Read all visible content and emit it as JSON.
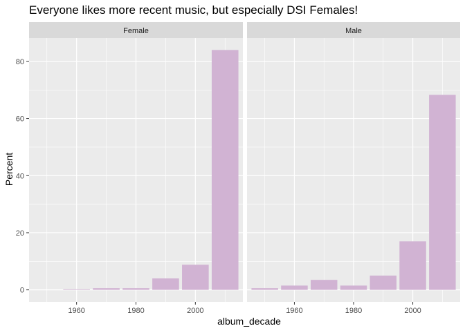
{
  "chart_data": {
    "type": "bar",
    "title": "Everyone likes more recent music, but especially DSI Females!",
    "xlabel": "album_decade",
    "ylabel": "Percent",
    "xlim": [
      1944,
      2016
    ],
    "ylim": [
      -4.2,
      88.2
    ],
    "x_ticks": [
      "1960",
      "1980",
      "2000"
    ],
    "y_ticks": [
      "0",
      "20",
      "40",
      "60",
      "80"
    ],
    "x_tick_values": [
      1960,
      1980,
      2000
    ],
    "y_tick_values": [
      0,
      20,
      40,
      60,
      80
    ],
    "grid": true,
    "bar_color": "#D1B3D3",
    "panel_bg": "#EBEBEB",
    "strip_bg": "#D9D9D9",
    "panels": [
      {
        "name": "Female",
        "x": [
          1950,
          1960,
          1970,
          1980,
          1990,
          2000,
          2010
        ],
        "values": [
          0,
          0.2,
          0.6,
          0.6,
          4.0,
          8.8,
          84.0
        ]
      },
      {
        "name": "Male",
        "x": [
          1950,
          1960,
          1970,
          1980,
          1990,
          2000,
          2010
        ],
        "values": [
          0.6,
          1.5,
          3.5,
          1.5,
          5.0,
          17.0,
          68.3
        ]
      }
    ]
  }
}
